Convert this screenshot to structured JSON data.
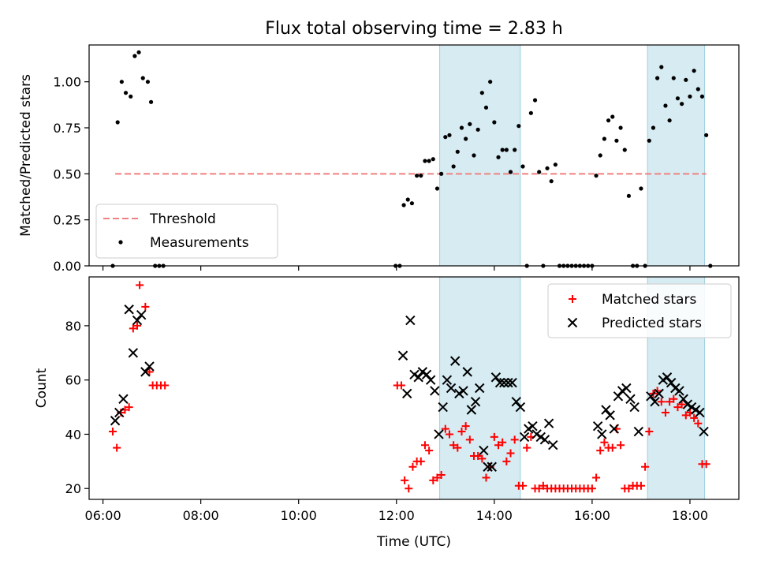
{
  "chart_data": [
    {
      "type": "scatter",
      "title": "Flux total observing time = 2.83 h",
      "xlabel": "",
      "ylabel": "Matched/Predicted stars",
      "xlim": [
        "05:43",
        "19:00"
      ],
      "ylim": [
        0,
        1.2
      ],
      "yticks": [
        "0.00",
        "0.25",
        "0.50",
        "0.75",
        "1.00"
      ],
      "shaded_regions": [
        [
          "12:53",
          "14:32"
        ],
        [
          "17:08",
          "18:18"
        ]
      ],
      "threshold": {
        "name": "Threshold",
        "value": 0.5,
        "x_range": [
          "06:15",
          "18:20"
        ],
        "color": "#f08080"
      },
      "legend": {
        "position": "lower-left",
        "entries": [
          "Threshold",
          "Measurements"
        ]
      },
      "series": [
        {
          "name": "Measurements",
          "marker": "dot",
          "color": "#000000",
          "points": [
            [
              "06:12",
              0
            ],
            [
              "06:18",
              0.78
            ],
            [
              "06:23",
              1.0
            ],
            [
              "06:28",
              0.94
            ],
            [
              "06:34",
              0.92
            ],
            [
              "06:39",
              1.14
            ],
            [
              "06:44",
              1.16
            ],
            [
              "06:49",
              1.02
            ],
            [
              "06:55",
              1.0
            ],
            [
              "06:59",
              0.89
            ],
            [
              "07:04",
              0
            ],
            [
              "07:09",
              0
            ],
            [
              "07:14",
              0
            ],
            [
              "11:59",
              0
            ],
            [
              "12:04",
              0
            ],
            [
              "12:09",
              0.33
            ],
            [
              "12:14",
              0.36
            ],
            [
              "12:19",
              0.34
            ],
            [
              "12:25",
              0.49
            ],
            [
              "12:30",
              0.49
            ],
            [
              "12:35",
              0.57
            ],
            [
              "12:40",
              0.57
            ],
            [
              "12:45",
              0.58
            ],
            [
              "12:50",
              0.42
            ],
            [
              "12:55",
              0.5
            ],
            [
              "13:00",
              0.7
            ],
            [
              "13:05",
              0.71
            ],
            [
              "13:10",
              0.54
            ],
            [
              "13:15",
              0.62
            ],
            [
              "13:20",
              0.75
            ],
            [
              "13:25",
              0.69
            ],
            [
              "13:30",
              0.77
            ],
            [
              "13:35",
              0.6
            ],
            [
              "13:40",
              0.74
            ],
            [
              "13:45",
              0.94
            ],
            [
              "13:50",
              0.86
            ],
            [
              "13:55",
              1.0
            ],
            [
              "14:00",
              0.78
            ],
            [
              "14:05",
              0.59
            ],
            [
              "14:10",
              0.63
            ],
            [
              "14:15",
              0.63
            ],
            [
              "14:20",
              0.51
            ],
            [
              "14:25",
              0.63
            ],
            [
              "14:30",
              0.76
            ],
            [
              "14:35",
              0.54
            ],
            [
              "14:40",
              0
            ],
            [
              "14:45",
              0.83
            ],
            [
              "14:50",
              0.9
            ],
            [
              "14:55",
              0.51
            ],
            [
              "15:00",
              0
            ],
            [
              "15:05",
              0.53
            ],
            [
              "15:10",
              0.46
            ],
            [
              "15:15",
              0.55
            ],
            [
              "15:20",
              0
            ],
            [
              "15:25",
              0
            ],
            [
              "15:30",
              0
            ],
            [
              "15:35",
              0
            ],
            [
              "15:40",
              0
            ],
            [
              "15:45",
              0
            ],
            [
              "15:50",
              0
            ],
            [
              "15:55",
              0
            ],
            [
              "16:00",
              0
            ],
            [
              "16:05",
              0.49
            ],
            [
              "16:10",
              0.6
            ],
            [
              "16:15",
              0.69
            ],
            [
              "16:20",
              0.79
            ],
            [
              "16:25",
              0.81
            ],
            [
              "16:30",
              0.68
            ],
            [
              "16:35",
              0.75
            ],
            [
              "16:40",
              0.63
            ],
            [
              "16:45",
              0.38
            ],
            [
              "16:50",
              0
            ],
            [
              "16:55",
              0
            ],
            [
              "17:00",
              0.42
            ],
            [
              "17:05",
              0
            ],
            [
              "17:10",
              0.68
            ],
            [
              "17:15",
              0.75
            ],
            [
              "17:20",
              1.02
            ],
            [
              "17:25",
              1.08
            ],
            [
              "17:30",
              0.87
            ],
            [
              "17:35",
              0.79
            ],
            [
              "17:40",
              1.02
            ],
            [
              "17:45",
              0.91
            ],
            [
              "17:50",
              0.88
            ],
            [
              "17:55",
              1.01
            ],
            [
              "18:00",
              0.92
            ],
            [
              "18:05",
              1.06
            ],
            [
              "18:10",
              0.96
            ],
            [
              "18:15",
              0.92
            ],
            [
              "18:20",
              0.71
            ],
            [
              "18:25",
              0
            ]
          ]
        }
      ]
    },
    {
      "type": "scatter",
      "title": "",
      "xlabel": "Time (UTC)",
      "ylabel": "Count",
      "xlim": [
        "05:43",
        "19:00"
      ],
      "ylim": [
        16,
        98
      ],
      "xticks": [
        "06:00",
        "08:00",
        "10:00",
        "12:00",
        "14:00",
        "16:00",
        "18:00"
      ],
      "yticks": [
        "20",
        "40",
        "60",
        "80"
      ],
      "shaded_regions": [
        [
          "12:53",
          "14:32"
        ],
        [
          "17:08",
          "18:18"
        ]
      ],
      "legend": {
        "position": "top-right",
        "entries": [
          "Matched stars",
          "Predicted stars"
        ]
      },
      "series": [
        {
          "name": "Matched stars",
          "marker": "plus",
          "color": "#ff0000",
          "points": [
            [
              "06:12",
              41
            ],
            [
              "06:17",
              35
            ],
            [
              "06:22",
              48
            ],
            [
              "06:27",
              49
            ],
            [
              "06:32",
              50
            ],
            [
              "06:37",
              79
            ],
            [
              "06:42",
              80
            ],
            [
              "06:45",
              95
            ],
            [
              "06:52",
              87
            ],
            [
              "06:57",
              63
            ],
            [
              "07:01",
              58
            ],
            [
              "07:06",
              58
            ],
            [
              "07:11",
              58
            ],
            [
              "07:16",
              58
            ],
            [
              "12:01",
              58
            ],
            [
              "12:06",
              58
            ],
            [
              "12:10",
              23
            ],
            [
              "12:15",
              20
            ],
            [
              "12:20",
              28
            ],
            [
              "12:25",
              30
            ],
            [
              "12:30",
              30
            ],
            [
              "12:35",
              36
            ],
            [
              "12:40",
              34
            ],
            [
              "12:45",
              23
            ],
            [
              "12:50",
              24
            ],
            [
              "12:55",
              25
            ],
            [
              "13:00",
              42
            ],
            [
              "13:05",
              40
            ],
            [
              "13:10",
              36
            ],
            [
              "13:15",
              35
            ],
            [
              "13:20",
              41
            ],
            [
              "13:25",
              43
            ],
            [
              "13:30",
              38
            ],
            [
              "13:35",
              32
            ],
            [
              "13:40",
              32
            ],
            [
              "13:45",
              31
            ],
            [
              "13:50",
              24
            ],
            [
              "13:55",
              28
            ],
            [
              "14:00",
              39
            ],
            [
              "14:05",
              36
            ],
            [
              "14:10",
              37
            ],
            [
              "14:15",
              30
            ],
            [
              "14:20",
              33
            ],
            [
              "14:25",
              38
            ],
            [
              "14:30",
              21
            ],
            [
              "14:35",
              21
            ],
            [
              "14:40",
              35
            ],
            [
              "14:45",
              39
            ],
            [
              "14:50",
              20
            ],
            [
              "14:55",
              20
            ],
            [
              "15:00",
              21
            ],
            [
              "15:05",
              20
            ],
            [
              "15:10",
              20
            ],
            [
              "15:15",
              20
            ],
            [
              "15:20",
              20
            ],
            [
              "15:25",
              20
            ],
            [
              "15:30",
              20
            ],
            [
              "15:35",
              20
            ],
            [
              "15:40",
              20
            ],
            [
              "15:45",
              20
            ],
            [
              "15:50",
              20
            ],
            [
              "15:55",
              20
            ],
            [
              "16:00",
              20
            ],
            [
              "16:05",
              24
            ],
            [
              "16:10",
              34
            ],
            [
              "16:15",
              37
            ],
            [
              "16:20",
              35
            ],
            [
              "16:25",
              35
            ],
            [
              "16:30",
              42
            ],
            [
              "16:35",
              36
            ],
            [
              "16:40",
              20
            ],
            [
              "16:45",
              20
            ],
            [
              "16:50",
              21
            ],
            [
              "16:55",
              21
            ],
            [
              "17:00",
              21
            ],
            [
              "17:05",
              28
            ],
            [
              "17:10",
              41
            ],
            [
              "17:15",
              55
            ],
            [
              "17:20",
              56
            ],
            [
              "17:25",
              52
            ],
            [
              "17:30",
              48
            ],
            [
              "17:35",
              52
            ],
            [
              "17:40",
              53
            ],
            [
              "17:45",
              50
            ],
            [
              "17:50",
              51
            ],
            [
              "17:55",
              47
            ],
            [
              "18:00",
              48
            ],
            [
              "18:05",
              46
            ],
            [
              "18:10",
              44
            ],
            [
              "18:15",
              29
            ],
            [
              "18:20",
              29
            ]
          ]
        },
        {
          "name": "Predicted stars",
          "marker": "x",
          "color": "#000000",
          "points": [
            [
              "06:15",
              45
            ],
            [
              "06:20",
              48
            ],
            [
              "06:25",
              53
            ],
            [
              "06:32",
              86
            ],
            [
              "06:37",
              70
            ],
            [
              "06:42",
              82
            ],
            [
              "06:47",
              84
            ],
            [
              "06:52",
              63
            ],
            [
              "06:57",
              65
            ],
            [
              "12:08",
              69
            ],
            [
              "12:13",
              55
            ],
            [
              "12:17",
              82
            ],
            [
              "12:22",
              62
            ],
            [
              "12:27",
              61
            ],
            [
              "12:32",
              63
            ],
            [
              "12:37",
              62
            ],
            [
              "12:42",
              60
            ],
            [
              "12:47",
              56
            ],
            [
              "12:52",
              40
            ],
            [
              "12:57",
              50
            ],
            [
              "13:02",
              60
            ],
            [
              "13:07",
              57
            ],
            [
              "13:12",
              67
            ],
            [
              "13:17",
              55
            ],
            [
              "13:22",
              56
            ],
            [
              "13:27",
              63
            ],
            [
              "13:32",
              49
            ],
            [
              "13:37",
              52
            ],
            [
              "13:42",
              57
            ],
            [
              "13:47",
              34
            ],
            [
              "13:52",
              28
            ],
            [
              "13:57",
              28
            ],
            [
              "14:02",
              61
            ],
            [
              "14:07",
              59
            ],
            [
              "14:12",
              59
            ],
            [
              "14:17",
              59
            ],
            [
              "14:22",
              59
            ],
            [
              "14:27",
              52
            ],
            [
              "14:32",
              50
            ],
            [
              "14:37",
              39
            ],
            [
              "14:42",
              42
            ],
            [
              "14:47",
              43
            ],
            [
              "14:52",
              40
            ],
            [
              "14:57",
              39
            ],
            [
              "15:02",
              38
            ],
            [
              "15:07",
              44
            ],
            [
              "15:12",
              36
            ],
            [
              "16:07",
              43
            ],
            [
              "16:12",
              40
            ],
            [
              "16:17",
              49
            ],
            [
              "16:22",
              47
            ],
            [
              "16:27",
              42
            ],
            [
              "16:32",
              54
            ],
            [
              "16:37",
              56
            ],
            [
              "16:42",
              57
            ],
            [
              "16:47",
              53
            ],
            [
              "16:52",
              50
            ],
            [
              "16:57",
              41
            ],
            [
              "17:12",
              54
            ],
            [
              "17:17",
              52
            ],
            [
              "17:22",
              55
            ],
            [
              "17:27",
              60
            ],
            [
              "17:32",
              61
            ],
            [
              "17:37",
              59
            ],
            [
              "17:42",
              57
            ],
            [
              "17:47",
              56
            ],
            [
              "17:52",
              53
            ],
            [
              "17:57",
              51
            ],
            [
              "18:02",
              50
            ],
            [
              "18:07",
              49
            ],
            [
              "18:12",
              48
            ],
            [
              "18:17",
              41
            ]
          ]
        }
      ]
    }
  ]
}
